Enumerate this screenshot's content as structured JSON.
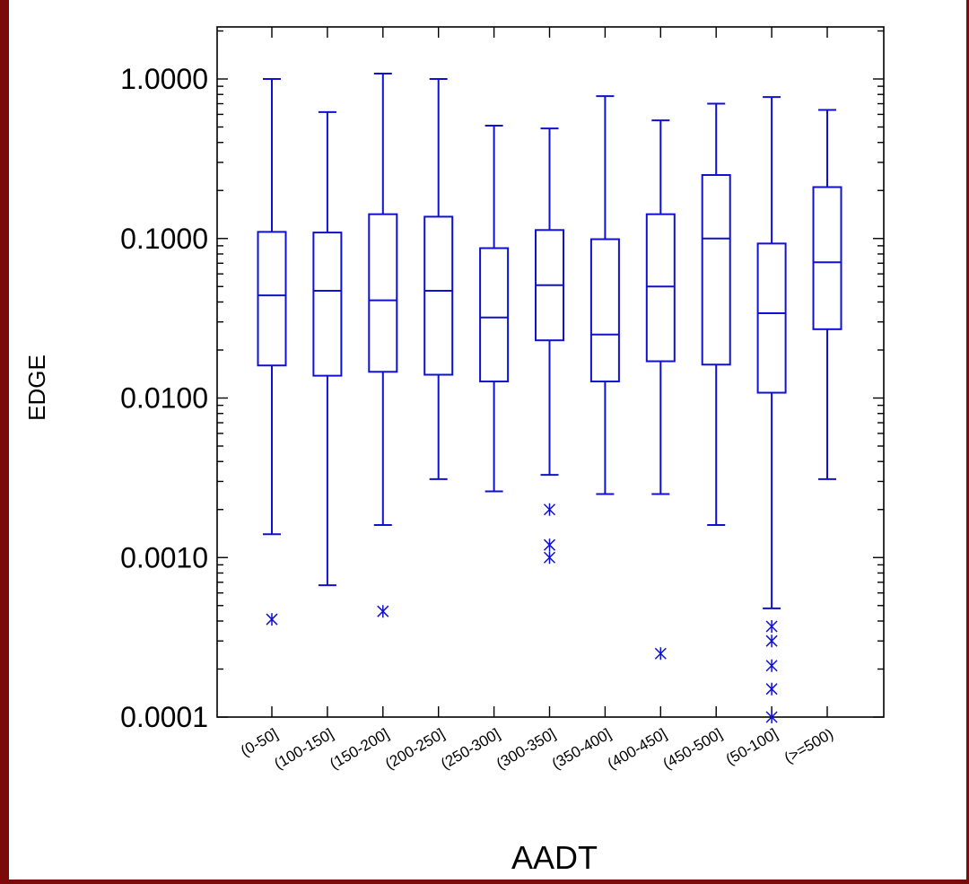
{
  "chart_data": {
    "type": "boxplot",
    "title": "",
    "xlabel": "AADT",
    "ylabel": "EDGE",
    "yscale": "log",
    "ylim": [
      0.0001,
      2.0
    ],
    "yticks": [
      {
        "value": 1.0,
        "label": "1.0000"
      },
      {
        "value": 0.1,
        "label": "0.1000"
      },
      {
        "value": 0.01,
        "label": "0.0100"
      },
      {
        "value": 0.001,
        "label": "0.0010"
      },
      {
        "value": 0.0001,
        "label": "0.0001"
      }
    ],
    "color": "#1010d0",
    "categories": [
      "(0-50]",
      "(100-150]",
      "(150-200]",
      "(200-250]",
      "(250-300]",
      "(300-350]",
      "(350-400]",
      "(400-450]",
      "(450-500]",
      "(50-100]",
      "(>=500)"
    ],
    "boxes": [
      {
        "whisker_low": 0.0014,
        "q1": 0.016,
        "median": 0.044,
        "q3": 0.11,
        "whisker_high": 1.0,
        "outliers": [
          0.00041
        ]
      },
      {
        "whisker_low": 0.00067,
        "q1": 0.0138,
        "median": 0.047,
        "q3": 0.109,
        "whisker_high": 0.62,
        "outliers": []
      },
      {
        "whisker_low": 0.0016,
        "q1": 0.0146,
        "median": 0.041,
        "q3": 0.142,
        "whisker_high": 1.08,
        "outliers": [
          0.00046
        ]
      },
      {
        "whisker_low": 0.0031,
        "q1": 0.014,
        "median": 0.047,
        "q3": 0.137,
        "whisker_high": 1.0,
        "outliers": []
      },
      {
        "whisker_low": 0.0026,
        "q1": 0.0127,
        "median": 0.032,
        "q3": 0.087,
        "whisker_high": 0.51,
        "outliers": []
      },
      {
        "whisker_low": 0.0033,
        "q1": 0.023,
        "median": 0.051,
        "q3": 0.113,
        "whisker_high": 0.49,
        "outliers": [
          0.002,
          0.0012,
          0.001
        ]
      },
      {
        "whisker_low": 0.0025,
        "q1": 0.0127,
        "median": 0.025,
        "q3": 0.099,
        "whisker_high": 0.78,
        "outliers": []
      },
      {
        "whisker_low": 0.0025,
        "q1": 0.017,
        "median": 0.05,
        "q3": 0.142,
        "whisker_high": 0.55,
        "outliers": [
          0.00025
        ]
      },
      {
        "whisker_low": 0.0016,
        "q1": 0.0162,
        "median": 0.1,
        "q3": 0.25,
        "whisker_high": 0.7,
        "outliers": []
      },
      {
        "whisker_low": 0.00048,
        "q1": 0.0108,
        "median": 0.034,
        "q3": 0.093,
        "whisker_high": 0.77,
        "outliers": [
          0.00037,
          0.0003,
          0.00021,
          0.00015,
          0.0001
        ]
      },
      {
        "whisker_low": 0.0031,
        "q1": 0.027,
        "median": 0.071,
        "q3": 0.21,
        "whisker_high": 0.64,
        "outliers": []
      }
    ]
  }
}
